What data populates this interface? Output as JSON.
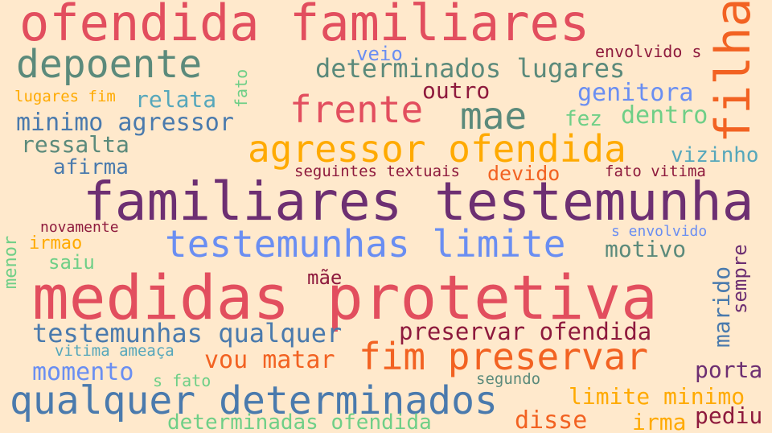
{
  "background": "#ffe9cc",
  "colors": {
    "red": "#e24e5e",
    "teal": "#5b8a7b",
    "purple": "#6d2f72",
    "orange": "#ffaa00",
    "blue": "#6a8ef2",
    "steel": "#4a7aad",
    "green": "#6fcf87",
    "darkred": "#8e1a3d",
    "darkorange": "#f26222",
    "cyan": "#56a7bb"
  },
  "words": [
    {
      "text": "ofendida familiares",
      "color": "#e24e5e"
    },
    {
      "text": "depoente",
      "color": "#5b8a7b"
    },
    {
      "text": "filha",
      "color": "#f26222"
    },
    {
      "text": "veio",
      "color": "#6a8ef2"
    },
    {
      "text": "envolvido s",
      "color": "#8e1a3d"
    },
    {
      "text": "determinados lugares",
      "color": "#5b8a7b"
    },
    {
      "text": "fato",
      "color": "#6fcf87"
    },
    {
      "text": "lugares fim",
      "color": "#ffaa00"
    },
    {
      "text": "relata",
      "color": "#56a7bb"
    },
    {
      "text": "frente",
      "color": "#e24e5e"
    },
    {
      "text": "outro",
      "color": "#8e1a3d"
    },
    {
      "text": "genitora",
      "color": "#6a8ef2"
    },
    {
      "text": "mae",
      "color": "#5b8a7b"
    },
    {
      "text": "minimo agressor",
      "color": "#4a7aad"
    },
    {
      "text": "fez",
      "color": "#6fcf87"
    },
    {
      "text": "dentro",
      "color": "#6fcf87"
    },
    {
      "text": "ressalta",
      "color": "#5b8a7b"
    },
    {
      "text": "agressor ofendida",
      "color": "#ffaa00"
    },
    {
      "text": "vizinho",
      "color": "#56a7bb"
    },
    {
      "text": "afirma",
      "color": "#4a7aad"
    },
    {
      "text": "seguintes textuais",
      "color": "#8e1a3d"
    },
    {
      "text": "devido",
      "color": "#f26222"
    },
    {
      "text": "fato vitima",
      "color": "#8e1a3d"
    },
    {
      "text": "familiares testemunha",
      "color": "#6d2f72"
    },
    {
      "text": "novamente",
      "color": "#8e1a3d"
    },
    {
      "text": "s envolvido",
      "color": "#6a8ef2"
    },
    {
      "text": "irmao",
      "color": "#ffaa00"
    },
    {
      "text": "menor",
      "color": "#6fcf87"
    },
    {
      "text": "testemunhas limite",
      "color": "#6a8ef2"
    },
    {
      "text": "motivo",
      "color": "#5b8a7b"
    },
    {
      "text": "saiu",
      "color": "#6fcf87"
    },
    {
      "text": "sempre",
      "color": "#6d2f72"
    },
    {
      "text": "marido",
      "color": "#4a7aad"
    },
    {
      "text": "mãe",
      "color": "#8e1a3d"
    },
    {
      "text": "medidas protetiva",
      "color": "#e24e5e"
    },
    {
      "text": "testemunhas qualquer",
      "color": "#4a7aad"
    },
    {
      "text": "preservar ofendida",
      "color": "#8e1a3d"
    },
    {
      "text": "vitima ameaça",
      "color": "#56a7bb"
    },
    {
      "text": "fim preservar",
      "color": "#f26222"
    },
    {
      "text": "vou matar",
      "color": "#f26222"
    },
    {
      "text": "momento",
      "color": "#6a8ef2"
    },
    {
      "text": "porta",
      "color": "#6d2f72"
    },
    {
      "text": "s fato",
      "color": "#6fcf87"
    },
    {
      "text": "segundo",
      "color": "#5b8a7b"
    },
    {
      "text": "qualquer determinados",
      "color": "#4a7aad"
    },
    {
      "text": "limite minimo",
      "color": "#ffaa00"
    },
    {
      "text": "determinadas ofendida",
      "color": "#6fcf87"
    },
    {
      "text": "disse",
      "color": "#f26222"
    },
    {
      "text": "irma",
      "color": "#ffaa00"
    },
    {
      "text": "pediu",
      "color": "#8e1a3d"
    }
  ]
}
